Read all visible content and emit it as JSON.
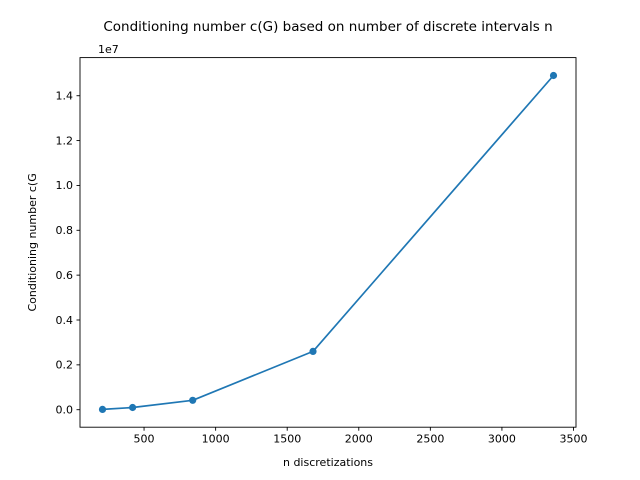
{
  "figure": {
    "background": "#ffffff",
    "spine_color": "#000000",
    "text_color": "#000000"
  },
  "chart_data": {
    "type": "line",
    "title": "Conditioning number c(G) based on number of discrete intervals n",
    "xlabel": "n discretizations",
    "ylabel": "Conditioning number c(G",
    "y_offset_text": "1e7",
    "x": [
      210,
      420,
      840,
      1680,
      3360
    ],
    "y": [
      15000,
      100000,
      420000,
      2600000,
      14900000
    ],
    "xlim": [
      52.5,
      3517.5
    ],
    "ylim": [
      -780000,
      15700000
    ],
    "xticks": [
      500,
      1000,
      1500,
      2000,
      2500,
      3000,
      3500
    ],
    "xtick_labels": [
      "500",
      "1000",
      "1500",
      "2000",
      "2500",
      "3000",
      "3500"
    ],
    "yticks": [
      0,
      2000000,
      4000000,
      6000000,
      8000000,
      10000000,
      12000000,
      14000000
    ],
    "ytick_labels": [
      "0.0",
      "0.2",
      "0.4",
      "0.6",
      "0.8",
      "1.0",
      "1.2",
      "1.4"
    ],
    "line_color": "#1f77b4",
    "marker": "o",
    "marker_color": "#1f77b4",
    "grid": false,
    "legend": null
  }
}
